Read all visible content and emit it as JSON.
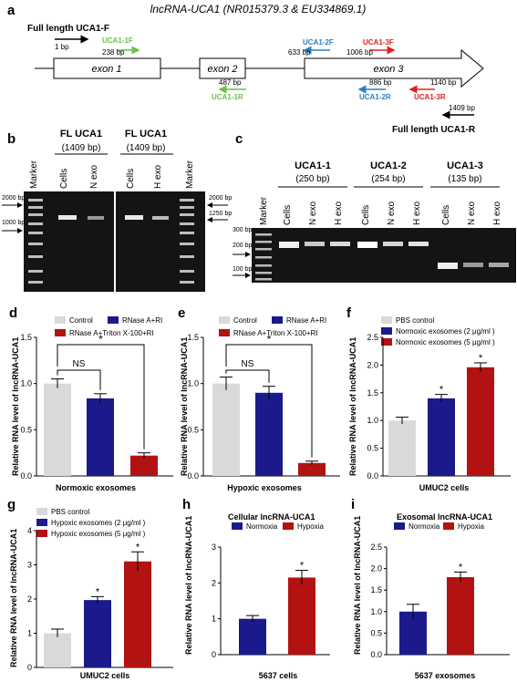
{
  "title": "lncRNA-UCA1 (NR015379.3 & EU334869.1)",
  "colors": {
    "gray": "#d9d9d9",
    "blue": "#1a1a8c",
    "red": "#b31212",
    "green": "#6cbf4a",
    "lblue": "#2a7fc0",
    "bright_red": "#e02020"
  },
  "panel_a": {
    "letter": "a",
    "fl_f": "Full length UCA1-F",
    "fl_r": "Full length UCA1-R",
    "bp_1": "1 bp",
    "f1": "UCA1-1F",
    "f1_bp": "238 bp",
    "r1": "UCA1-1R",
    "r1_bp": "487 bp",
    "f2": "UCA1-2F",
    "f2_bp": "633 bp",
    "r2": "UCA1-2R",
    "r2_bp": "886 bp",
    "f3": "UCA1-3F",
    "f3_bp": "1006 bp",
    "r3": "UCA1-3R",
    "r3_bp": "1140 bp",
    "end_bp": "1409 bp",
    "exon1": "exon 1",
    "exon2": "exon 2",
    "exon3": "exon 3"
  },
  "panel_b": {
    "letter": "b",
    "header1": "FL UCA1",
    "header1_bp": "(1409 bp)",
    "header2": "FL UCA1",
    "header2_bp": "(1409 bp)",
    "lanes1": [
      "Marker",
      "Cells",
      "N exo"
    ],
    "lanes2": [
      "Cells",
      "H exo",
      "Marker"
    ],
    "m2000": "2000 bp",
    "m1000": "1000 bp",
    "m2000r": "2000 bp",
    "m1250r": "1250 bp"
  },
  "panel_c": {
    "letter": "c",
    "groups": [
      {
        "name": "UCA1-1",
        "bp": "(250 bp)"
      },
      {
        "name": "UCA1-2",
        "bp": "(254 bp)"
      },
      {
        "name": "UCA1-3",
        "bp": "(135 bp)"
      }
    ],
    "marker": "Marker",
    "lanes": [
      "Cells",
      "N exo",
      "H exo",
      "Cells",
      "N exo",
      "H exo",
      "Cells",
      "N exo",
      "H exo"
    ],
    "m300": "300 bp",
    "m200": "200 bp",
    "m100": "100 bp"
  },
  "chart_data": [
    {
      "id": "d",
      "type": "bar",
      "letter": "d",
      "ylabel": "Relative RNA level of lncRNA-UCA1",
      "xlabel": "Normoxic exosomes",
      "ylim": [
        0,
        1.5
      ],
      "yticks": [
        "0.0",
        "0.5",
        "1.0",
        "1.5"
      ],
      "legend": [
        "Control",
        "RNase A+RI",
        "RNase A+Triton X-100+RI"
      ],
      "series": [
        {
          "name": "Control",
          "value": 1.0,
          "err": 0.05
        },
        {
          "name": "RNase A+RI",
          "value": 0.84,
          "err": 0.05
        },
        {
          "name": "RNase A+Triton X-100+RI",
          "value": 0.22,
          "err": 0.03
        }
      ],
      "annotations": [
        "NS",
        "*"
      ]
    },
    {
      "id": "e",
      "type": "bar",
      "letter": "e",
      "ylabel": "Relative RNA level of lncRNA-UCA1",
      "xlabel": "Hypoxic exosomes",
      "ylim": [
        0,
        1.5
      ],
      "yticks": [
        "0.0",
        "0.5",
        "1.0",
        "1.5"
      ],
      "legend": [
        "Control",
        "RNase A+RI",
        "RNase A+Triton X-100+RI"
      ],
      "series": [
        {
          "name": "Control",
          "value": 1.0,
          "err": 0.07
        },
        {
          "name": "RNase A+RI",
          "value": 0.9,
          "err": 0.07
        },
        {
          "name": "RNase A+Triton X-100+RI",
          "value": 0.14,
          "err": 0.02
        }
      ],
      "annotations": [
        "NS",
        "*"
      ]
    },
    {
      "id": "f",
      "type": "bar",
      "letter": "f",
      "ylabel": "Relative RNA level of lncRNA-UCA1",
      "xlabel": "UMUC2 cells",
      "ylim": [
        0,
        2.5
      ],
      "yticks": [
        "0.0",
        "0.5",
        "1.0",
        "1.5",
        "2.0",
        "2.5"
      ],
      "legend": [
        "PBS control",
        "Normoxic exosomes (2 μg/ml )",
        "Normoxic exosomes (5 μg/ml )"
      ],
      "series": [
        {
          "name": "PBS control",
          "value": 1.0,
          "err": 0.06
        },
        {
          "name": "Normoxic exosomes (2 μg/ml )",
          "value": 1.4,
          "err": 0.07
        },
        {
          "name": "Normoxic exosomes (5 μg/ml )",
          "value": 1.96,
          "err": 0.08
        }
      ],
      "annotations": [
        "*",
        "*"
      ]
    },
    {
      "id": "g",
      "type": "bar",
      "letter": "g",
      "ylabel": "Relative RNA level of lncRNA-UCA1",
      "xlabel": "UMUC2 cells",
      "ylim": [
        0,
        4
      ],
      "yticks": [
        "0",
        "1",
        "2",
        "3",
        "4"
      ],
      "legend": [
        "PBS control",
        "Hypoxic exosomes (2 μg/ml )",
        "Hypoxic exosomes (5 μg/ml )"
      ],
      "series": [
        {
          "name": "PBS control",
          "value": 1.0,
          "err": 0.12
        },
        {
          "name": "Hypoxic exosomes (2 μg/ml )",
          "value": 1.97,
          "err": 0.1
        },
        {
          "name": "Hypoxic exosomes (5 μg/ml )",
          "value": 3.1,
          "err": 0.28
        }
      ],
      "annotations": [
        "*",
        "*"
      ]
    },
    {
      "id": "h",
      "type": "bar",
      "letter": "h",
      "title": "Cellular lncRNA-UCA1",
      "ylabel": "Relative RNA level of lncRNA-UCA1",
      "xlabel": "5637 cells",
      "ylim": [
        0,
        3
      ],
      "yticks": [
        "0",
        "1",
        "2",
        "3"
      ],
      "legend": [
        "Normoxia",
        "Hypoxia"
      ],
      "series": [
        {
          "name": "Normoxia",
          "value": 1.0,
          "err": 0.09
        },
        {
          "name": "Hypoxia",
          "value": 2.15,
          "err": 0.2
        }
      ],
      "annotations": [
        "*"
      ]
    },
    {
      "id": "i",
      "type": "bar",
      "letter": "i",
      "title": "Exosomal lncRNA-UCA1",
      "ylabel": "Relative RNA level of lncRNA-UCA1",
      "xlabel": "5637 exosomes",
      "ylim": [
        0,
        2.5
      ],
      "yticks": [
        "0.0",
        "0.5",
        "1.0",
        "1.5",
        "2.0",
        "2.5"
      ],
      "legend": [
        "Normoxia",
        "Hypoxia"
      ],
      "series": [
        {
          "name": "Normoxia",
          "value": 1.0,
          "err": 0.17
        },
        {
          "name": "Hypoxia",
          "value": 1.8,
          "err": 0.12
        }
      ],
      "annotations": [
        "*"
      ]
    }
  ]
}
